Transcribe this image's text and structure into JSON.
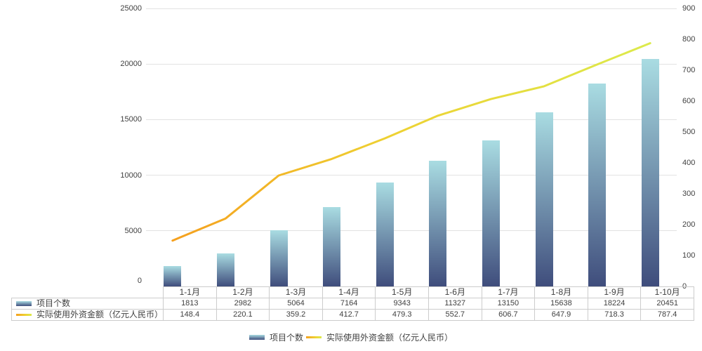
{
  "chart_data": {
    "type": "combo-bar-line",
    "title": "",
    "categories": [
      "1-1月",
      "1-2月",
      "1-3月",
      "1-4月",
      "1-5月",
      "1-6月",
      "1-7月",
      "1-8月",
      "1-9月",
      "1-10月"
    ],
    "series": [
      {
        "name": "项目个数",
        "type": "bar",
        "axis": "left",
        "values": [
          1813,
          2982,
          5064,
          7164,
          9343,
          11327,
          13150,
          15638,
          18224,
          20451
        ]
      },
      {
        "name": "实际使用外资金额（亿元人民币）",
        "type": "line",
        "axis": "right",
        "values": [
          148.4,
          220.1,
          359.2,
          412.7,
          479.3,
          552.7,
          606.7,
          647.9,
          718.3,
          787.4
        ]
      }
    ],
    "left_axis": {
      "min": 0,
      "max": 25000,
      "step": 5000,
      "ticks": [
        0,
        5000,
        10000,
        15000,
        20000,
        25000
      ]
    },
    "right_axis": {
      "min": 0,
      "max": 900,
      "step": 100,
      "ticks": [
        0,
        100,
        200,
        300,
        400,
        500,
        600,
        700,
        800,
        900
      ]
    },
    "grid": true,
    "legend_position": "bottom",
    "data_table_shown": true,
    "colors": {
      "bar_gradient_top": "#a9dce2",
      "bar_gradient_bottom": "#3f4d7c",
      "line_gradient_start": "#f5a01e",
      "line_gradient_mid": "#eed132",
      "line_gradient_end": "#dcea4c",
      "grid_line": "#e2e2e2",
      "table_border": "#cccccc",
      "text": "#404040",
      "background": "#ffffff"
    }
  }
}
